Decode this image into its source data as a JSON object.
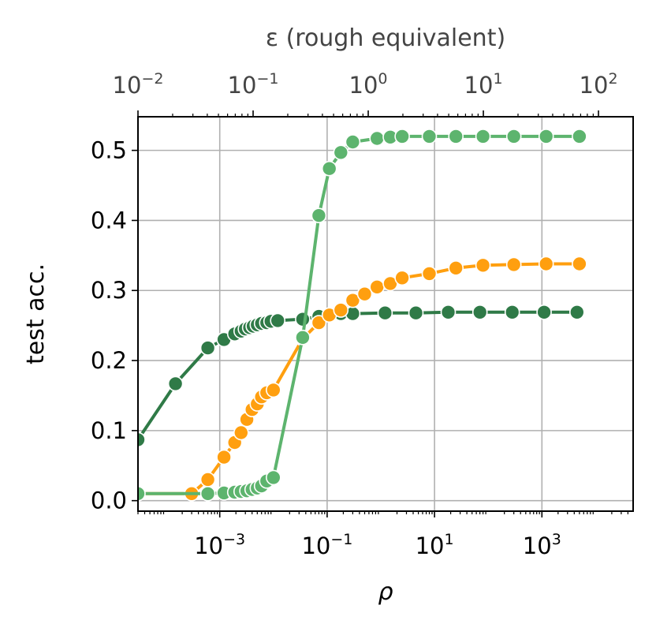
{
  "chart_data": {
    "type": "line",
    "xlabel": "ρ",
    "ylabel": "test acc.",
    "top_xlabel": "ε (rough equivalent)",
    "x_scale": "log",
    "xlim": [
      3e-05,
      50000
    ],
    "ylim": [
      -0.015,
      0.548
    ],
    "grid": true,
    "x_ticks": [
      {
        "value": 0.001,
        "base": "10",
        "exp": "−3"
      },
      {
        "value": 0.1,
        "base": "10",
        "exp": "−1"
      },
      {
        "value": 10,
        "base": "10",
        "exp": "1"
      },
      {
        "value": 1000,
        "base": "10",
        "exp": "3"
      }
    ],
    "y_ticks": [
      {
        "value": 0.0,
        "label": "0.0"
      },
      {
        "value": 0.1,
        "label": "0.1"
      },
      {
        "value": 0.2,
        "label": "0.2"
      },
      {
        "value": 0.3,
        "label": "0.3"
      },
      {
        "value": 0.4,
        "label": "0.4"
      },
      {
        "value": 0.5,
        "label": "0.5"
      }
    ],
    "top_axis": {
      "scale": "log",
      "xlim": [
        0.01,
        200
      ],
      "ticks": [
        {
          "value": 0.01,
          "base": "10",
          "exp": "−2"
        },
        {
          "value": 0.1,
          "base": "10",
          "exp": "−1"
        },
        {
          "value": 1,
          "base": "10",
          "exp": "0"
        },
        {
          "value": 10,
          "base": "10",
          "exp": "1"
        },
        {
          "value": 100,
          "base": "10",
          "exp": "2"
        }
      ]
    },
    "series": [
      {
        "color": "#2f7a47",
        "x": [
          3e-05,
          0.00015,
          0.0006,
          0.0012,
          0.0019,
          0.0025,
          0.003,
          0.0036,
          0.0042,
          0.005,
          0.006,
          0.0075,
          0.009,
          0.012,
          0.035,
          0.07,
          0.11,
          0.18,
          0.3,
          1.2,
          4.5,
          18,
          70,
          280,
          1100,
          4500
        ],
        "y": [
          0.087,
          0.167,
          0.218,
          0.23,
          0.238,
          0.242,
          0.245,
          0.247,
          0.249,
          0.251,
          0.253,
          0.254,
          0.256,
          0.257,
          0.259,
          0.263,
          0.265,
          0.267,
          0.267,
          0.268,
          0.268,
          0.269,
          0.269,
          0.269,
          0.269,
          0.269
        ]
      },
      {
        "color": "#ff9f0f",
        "x": [
          3e-05,
          0.0003,
          0.0006,
          0.0012,
          0.0019,
          0.0025,
          0.0032,
          0.004,
          0.005,
          0.006,
          0.0075,
          0.01,
          0.035,
          0.07,
          0.11,
          0.18,
          0.3,
          0.5,
          0.85,
          1.5,
          2.5,
          8,
          25,
          80,
          300,
          1200,
          5000
        ],
        "y": [
          0.01,
          0.01,
          0.03,
          0.062,
          0.083,
          0.097,
          0.116,
          0.13,
          0.138,
          0.148,
          0.154,
          0.158,
          0.231,
          0.254,
          0.265,
          0.272,
          0.286,
          0.295,
          0.305,
          0.31,
          0.318,
          0.324,
          0.332,
          0.336,
          0.337,
          0.338,
          0.338
        ]
      },
      {
        "color": "#5db46e",
        "x": [
          3e-05,
          0.0006,
          0.0012,
          0.0019,
          0.0025,
          0.0032,
          0.004,
          0.005,
          0.006,
          0.0075,
          0.01,
          0.035,
          0.07,
          0.11,
          0.18,
          0.3,
          0.85,
          1.5,
          2.5,
          8,
          25,
          80,
          300,
          1200,
          5000
        ],
        "y": [
          0.01,
          0.01,
          0.011,
          0.012,
          0.013,
          0.014,
          0.016,
          0.018,
          0.021,
          0.028,
          0.033,
          0.233,
          0.407,
          0.474,
          0.497,
          0.512,
          0.517,
          0.519,
          0.52,
          0.52,
          0.52,
          0.52,
          0.52,
          0.52,
          0.52
        ]
      }
    ]
  }
}
